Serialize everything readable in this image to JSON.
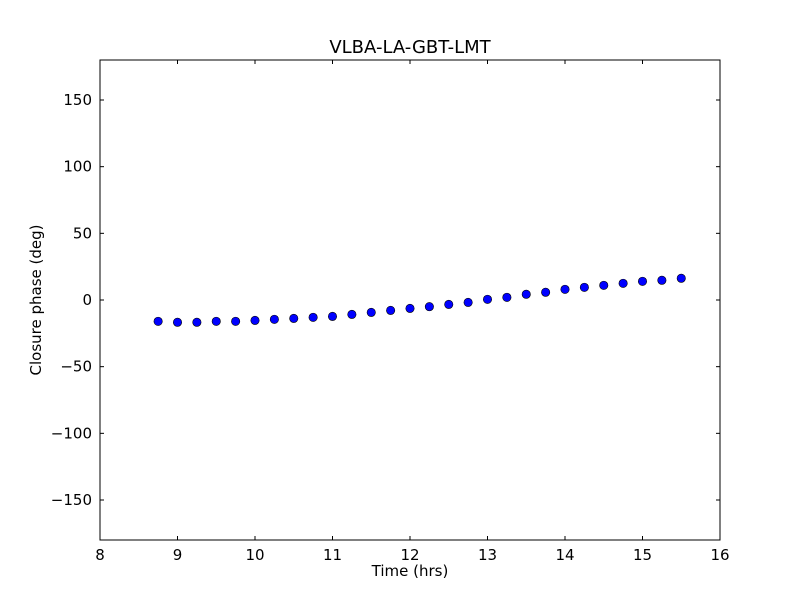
{
  "chart_data": {
    "type": "scatter",
    "title": "VLBA-LA-GBT-LMT",
    "xlabel": "Time (hrs)",
    "ylabel": "Closure phase (deg)",
    "xlim": [
      8,
      16
    ],
    "ylim": [
      -180,
      180
    ],
    "xticks": [
      8,
      9,
      10,
      11,
      12,
      13,
      14,
      15,
      16
    ],
    "xtick_labels": [
      "8",
      "9",
      "10",
      "11",
      "12",
      "13",
      "14",
      "15",
      "16"
    ],
    "yticks": [
      -150,
      -100,
      -50,
      0,
      50,
      100,
      150
    ],
    "ytick_labels": [
      "−150",
      "−100",
      "−50",
      "0",
      "50",
      "100",
      "150"
    ],
    "grid": false,
    "marker_color": "#0000ff",
    "series": [
      {
        "name": "closure phase",
        "x": [
          8.75,
          9.0,
          9.25,
          9.5,
          9.75,
          10.0,
          10.25,
          10.5,
          10.75,
          11.0,
          11.25,
          11.5,
          11.75,
          12.0,
          12.25,
          12.5,
          12.75,
          13.0,
          13.25,
          13.5,
          13.75,
          14.0,
          14.25,
          14.5,
          14.75,
          15.0,
          15.25,
          15.5
        ],
        "y": [
          -16.0,
          -16.7,
          -16.7,
          -16.0,
          -16.0,
          -15.3,
          -14.5,
          -13.8,
          -13.0,
          -12.3,
          -10.8,
          -9.3,
          -7.8,
          -6.3,
          -5.0,
          -3.3,
          -1.8,
          0.5,
          2.0,
          4.3,
          5.8,
          8.0,
          9.5,
          11.0,
          12.5,
          14.0,
          14.8,
          16.3
        ]
      }
    ]
  }
}
